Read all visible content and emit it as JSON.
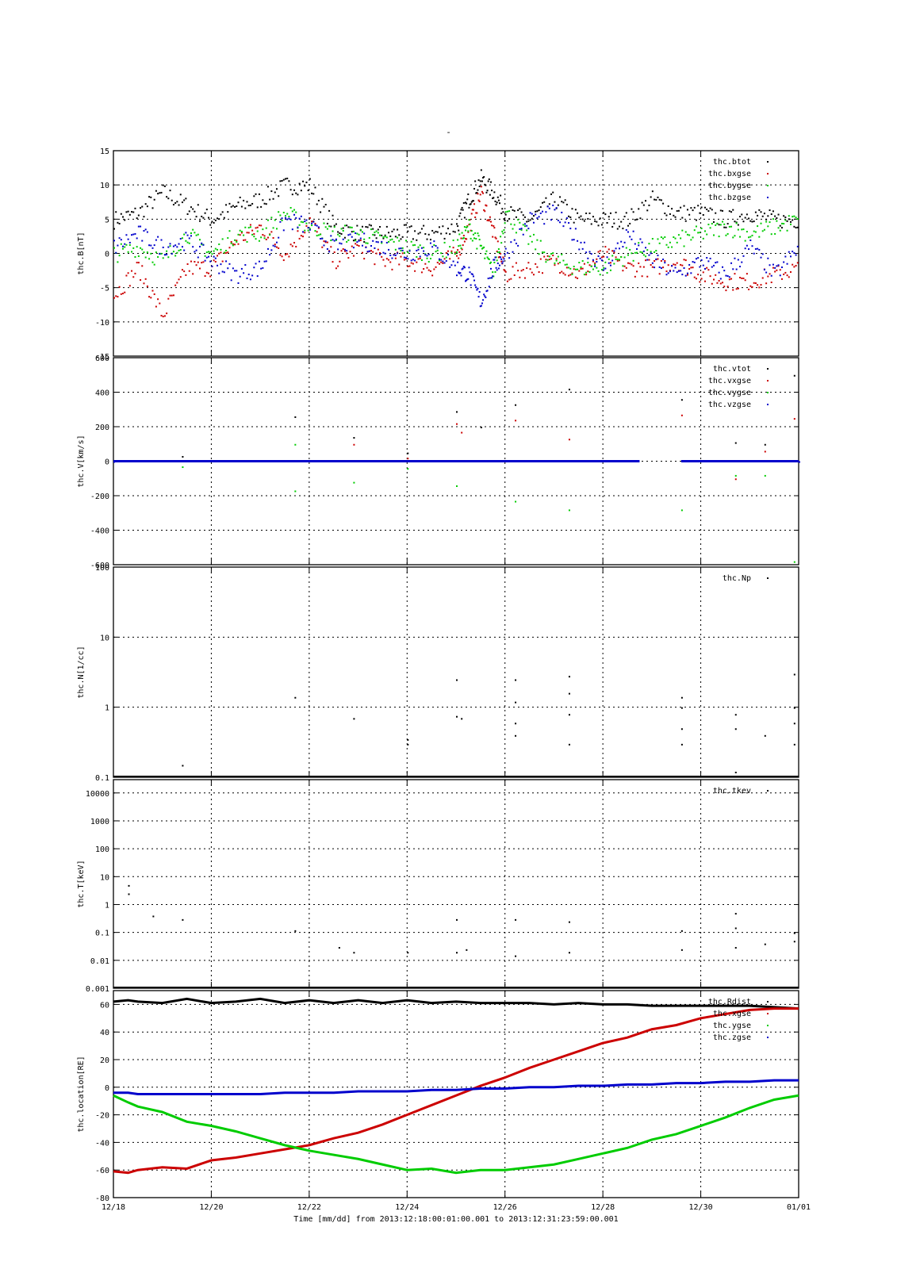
{
  "title": "-",
  "x_axis": {
    "tick_labels": [
      "12/18",
      "12/20",
      "12/22",
      "12/24",
      "12/26",
      "12/28",
      "12/30",
      "01/01"
    ],
    "tick_days": [
      0,
      2,
      4,
      6,
      8,
      10,
      12,
      14
    ],
    "range_days": [
      0,
      14
    ],
    "label": "Time [mm/dd]  from 2013:12:18:00:01:00.001  to  2013:12:31:23:59:00.001"
  },
  "colors": {
    "black": "#000000",
    "red": "#cc0000",
    "green": "#00cc00",
    "blue": "#0000cc"
  },
  "chart_data": [
    {
      "type": "scatter",
      "ylabel": "thc.B[nT]",
      "ylim": [
        -15,
        15
      ],
      "yticks": [
        "-15",
        "-10",
        "-5",
        "0",
        "5",
        "10",
        "15"
      ],
      "ytick_values": [
        -15,
        -10,
        -5,
        0,
        5,
        10,
        15
      ],
      "legend": "top-right",
      "grid": true,
      "x": [
        0.0,
        0.5,
        1.0,
        1.5,
        2.0,
        2.5,
        3.0,
        3.5,
        4.0,
        4.5,
        5.0,
        5.5,
        6.0,
        6.5,
        7.0,
        7.25,
        7.5,
        7.75,
        8.0,
        8.5,
        9.0,
        9.5,
        10.0,
        10.5,
        11.0,
        11.5,
        12.0,
        12.5,
        13.0,
        13.5,
        14.0
      ],
      "series": [
        {
          "name": "thc.btot",
          "color": "#000000",
          "values": [
            5,
            6,
            9,
            7,
            5,
            7,
            8,
            10,
            10,
            4,
            3,
            3,
            3,
            3,
            4,
            8,
            11,
            9,
            6,
            5,
            8,
            5,
            5,
            5,
            8,
            6,
            6,
            5,
            6,
            5,
            5
          ]
        },
        {
          "name": "thc.bxgse",
          "color": "#cc0000",
          "values": [
            -6,
            -2,
            -9,
            -2,
            -2,
            2,
            4,
            0,
            5,
            -1,
            1,
            -1,
            -1,
            -2,
            0,
            4,
            9,
            3,
            -3,
            -2,
            -1,
            -3,
            0,
            -2,
            -2,
            -1,
            -3,
            -4,
            -4,
            -3,
            -2
          ]
        },
        {
          "name": "thc.bygse",
          "color": "#00cc00",
          "values": [
            0,
            1,
            -1,
            3,
            0,
            3,
            3,
            6,
            4,
            3,
            3,
            2,
            1,
            0,
            1,
            4,
            1,
            -3,
            6,
            2,
            -1,
            -2,
            -2,
            0,
            1,
            2,
            3,
            4,
            3,
            4,
            5
          ]
        },
        {
          "name": "thc.bzgse",
          "color": "#0000cc",
          "values": [
            1,
            3,
            1,
            2,
            -1,
            -3,
            -2,
            5,
            4,
            1,
            2,
            1,
            0,
            1,
            -2,
            -3,
            -7,
            -2,
            0,
            5,
            6,
            2,
            -2,
            3,
            -1,
            -3,
            -1,
            -3,
            1,
            -3,
            1
          ]
        }
      ]
    },
    {
      "type": "scatter",
      "ylabel": "thc.V[km/s]",
      "ylim": [
        -600,
        600
      ],
      "yticks": [
        "-600",
        "-400",
        "-200",
        "0",
        "200",
        "400",
        "600"
      ],
      "ytick_values": [
        -600,
        -400,
        -200,
        0,
        200,
        400,
        600
      ],
      "legend": "top-right",
      "grid": true,
      "baseline": {
        "name": "thc.vzgse",
        "color": "#0000cc",
        "x_range": [
          0,
          10.75
        ],
        "value": 0
      },
      "baseline2": {
        "color": "#0000cc",
        "x_range": [
          11.6,
          14
        ],
        "value": 0
      },
      "series": [
        {
          "name": "thc.vtot",
          "color": "#000000",
          "x": [
            1.4,
            3.7,
            4.9,
            6.0,
            7.0,
            7.5,
            8.2,
            9.3,
            11.6,
            12.7,
            13.3,
            13.9
          ],
          "values": [
            30,
            260,
            140,
            50,
            290,
            200,
            330,
            420,
            360,
            110,
            100,
            500
          ]
        },
        {
          "name": "thc.vxgse",
          "color": "#cc0000",
          "x": [
            4.9,
            6.0,
            7.0,
            7.1,
            8.2,
            9.3,
            11.6,
            12.7,
            13.3,
            13.9
          ],
          "values": [
            100,
            20,
            220,
            170,
            240,
            130,
            270,
            -100,
            60,
            250
          ]
        },
        {
          "name": "thc.vygse",
          "color": "#00cc00",
          "x": [
            1.4,
            3.7,
            3.7,
            4.9,
            6.0,
            7.0,
            8.2,
            9.3,
            11.6,
            12.7,
            13.3,
            13.9
          ],
          "values": [
            -30,
            100,
            -170,
            -120,
            -40,
            -140,
            -230,
            -280,
            -280,
            -80,
            -80,
            -580
          ]
        },
        {
          "name": "thc.vzgse",
          "color": "#0000cc",
          "x": [
            0.0,
            14.0
          ],
          "values": [
            0,
            0
          ]
        }
      ]
    },
    {
      "type": "scatter",
      "ylabel": "thc.N[1/cc]",
      "ylim": [
        0.1,
        100
      ],
      "log": true,
      "yticks": [
        "0.1",
        "1",
        "10",
        "100"
      ],
      "ytick_values": [
        0.1,
        1,
        10,
        100
      ],
      "legend": "top-right",
      "grid": true,
      "series": [
        {
          "name": "thc.Np",
          "color": "#000000",
          "x": [
            1.4,
            3.7,
            4.9,
            6.0,
            6.0,
            7.0,
            7.0,
            7.1,
            8.2,
            8.2,
            8.2,
            8.2,
            9.3,
            9.3,
            9.3,
            9.3,
            11.6,
            11.6,
            11.6,
            11.6,
            12.7,
            12.7,
            12.7,
            13.3,
            13.9,
            13.9,
            13.9,
            13.9
          ],
          "values": [
            0.15,
            1.4,
            0.7,
            0.35,
            0.3,
            2.5,
            0.75,
            0.7,
            2.5,
            1.2,
            0.6,
            0.4,
            2.8,
            1.6,
            0.8,
            0.3,
            1.4,
            1.0,
            0.5,
            0.3,
            0.8,
            0.5,
            0.12,
            0.4,
            3.0,
            1.0,
            0.6,
            0.3
          ]
        }
      ]
    },
    {
      "type": "scatter",
      "ylabel": "thc.T[keV]",
      "ylim": [
        0.001,
        30000
      ],
      "log": true,
      "yticks": [
        "0.001",
        "0.01",
        "0.1",
        "1",
        "10",
        "100",
        "1000",
        "10000"
      ],
      "ytick_values": [
        0.001,
        0.01,
        0.1,
        1,
        10,
        100,
        1000,
        10000
      ],
      "legend": "top-right",
      "grid": true,
      "series": [
        {
          "name": "thc.tkev",
          "color": "#000000",
          "x": [
            0.3,
            0.3,
            0.8,
            1.4,
            3.7,
            4.6,
            4.9,
            6.0,
            7.0,
            7.0,
            7.2,
            8.2,
            8.2,
            9.3,
            9.3,
            11.6,
            11.6,
            12.7,
            12.7,
            12.7,
            13.3,
            13.9,
            13.9
          ],
          "values": [
            5,
            2.5,
            0.4,
            0.3,
            0.12,
            0.03,
            0.02,
            0.02,
            0.3,
            0.02,
            0.025,
            0.3,
            0.015,
            0.25,
            0.02,
            0.12,
            0.025,
            0.5,
            0.15,
            0.03,
            0.04,
            0.1,
            0.05
          ]
        }
      ]
    },
    {
      "type": "line",
      "ylabel": "thc.location[RE]",
      "ylim": [
        -80,
        70
      ],
      "yticks": [
        "-80",
        "-60",
        "-40",
        "-20",
        "0",
        "20",
        "40",
        "60"
      ],
      "ytick_values": [
        -80,
        -60,
        -40,
        -20,
        0,
        20,
        40,
        60
      ],
      "legend": "top-right",
      "grid": true,
      "x": [
        0,
        0.3,
        0.5,
        1.0,
        1.5,
        2.0,
        2.5,
        3.0,
        3.5,
        4.0,
        4.5,
        5.0,
        5.5,
        6.0,
        6.5,
        7.0,
        7.5,
        8.0,
        8.5,
        9.0,
        9.5,
        10.0,
        10.5,
        11.0,
        11.5,
        12.0,
        12.5,
        13.0,
        13.5,
        14.0
      ],
      "series": [
        {
          "name": "thc.Rdist",
          "color": "#000000",
          "values": [
            62,
            63,
            62,
            61,
            64,
            61,
            62,
            64,
            61,
            63,
            61,
            63,
            61,
            63,
            61,
            62,
            61,
            61,
            61,
            60,
            61,
            60,
            60,
            59,
            59,
            59,
            59,
            59,
            58,
            57
          ]
        },
        {
          "name": "thc.xgse",
          "color": "#cc0000",
          "values": [
            -61,
            -62,
            -60,
            -58,
            -59,
            -53,
            -51,
            -48,
            -45,
            -42,
            -37,
            -33,
            -27,
            -20,
            -13,
            -6,
            1,
            7,
            14,
            20,
            26,
            32,
            36,
            42,
            45,
            50,
            53,
            56,
            57,
            57
          ]
        },
        {
          "name": "thc.ygse",
          "color": "#00cc00",
          "values": [
            -6,
            -11,
            -14,
            -18,
            -25,
            -28,
            -32,
            -37,
            -42,
            -46,
            -49,
            -52,
            -56,
            -60,
            -59,
            -62,
            -60,
            -60,
            -58,
            -56,
            -52,
            -48,
            -44,
            -38,
            -34,
            -28,
            -22,
            -15,
            -9,
            -6
          ]
        },
        {
          "name": "thc.zgse",
          "color": "#0000cc",
          "values": [
            -4,
            -4,
            -5,
            -5,
            -5,
            -5,
            -5,
            -5,
            -4,
            -4,
            -4,
            -3,
            -3,
            -3,
            -2,
            -2,
            -1,
            -1,
            0,
            0,
            1,
            1,
            2,
            2,
            3,
            3,
            4,
            4,
            5,
            5
          ]
        }
      ]
    }
  ]
}
